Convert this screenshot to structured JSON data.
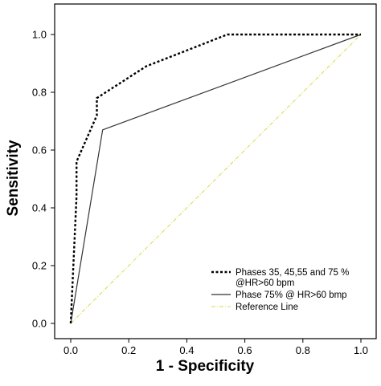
{
  "chart_data": {
    "type": "line",
    "title": "",
    "xlabel": "1 - Specificity",
    "ylabel": "Sensitivity",
    "xlim": [
      0,
      1
    ],
    "ylim": [
      0,
      1
    ],
    "x_ticks": [
      "0.0",
      "0.2",
      "0.4",
      "0.6",
      "0.8",
      "1.0"
    ],
    "y_ticks": [
      "0.0",
      "0.2",
      "0.4",
      "0.6",
      "0.8",
      "1.0"
    ],
    "grid": false,
    "legend_position": "bottom-right",
    "series": [
      {
        "name": "Phases 35, 45,55 and 75 % @HR>60 bpm",
        "legend_lines": [
          "Phases 35, 45,55 and 75 %",
          "@HR>60 bpm"
        ],
        "style": "dotted",
        "color": "#000000",
        "x": [
          0.0,
          0.02,
          0.02,
          0.09,
          0.09,
          0.26,
          0.54,
          1.0
        ],
        "y": [
          0.0,
          0.44,
          0.56,
          0.72,
          0.78,
          0.89,
          1.0,
          1.0
        ]
      },
      {
        "name": "Phase 75% @ HR>60 bmp",
        "legend_lines": [
          "Phase 75% @ HR>60 bmp"
        ],
        "style": "solid",
        "color": "#333333",
        "x": [
          0.0,
          0.11,
          1.0
        ],
        "y": [
          0.0,
          0.67,
          1.0
        ]
      },
      {
        "name": "Reference Line",
        "legend_lines": [
          "Reference Line"
        ],
        "style": "dashdot",
        "color": "#d9d94a",
        "x": [
          0.0,
          1.0
        ],
        "y": [
          0.0,
          1.0
        ]
      }
    ]
  }
}
